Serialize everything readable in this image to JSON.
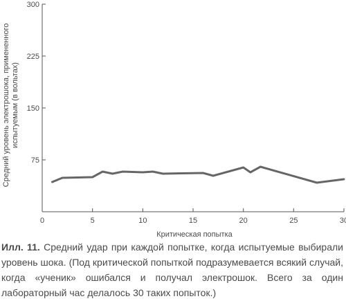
{
  "chart_data": {
    "type": "line",
    "title": "",
    "xlabel": "Критическая попытка",
    "ylabel_lines": [
      "Средний уровень электрошока, примененного",
      "испытуемым (в вольтах)"
    ],
    "xlim": [
      0,
      30
    ],
    "ylim": [
      0,
      300
    ],
    "x_ticks": [
      0,
      5,
      10,
      15,
      20,
      25,
      30
    ],
    "x_tick_labels": [
      "0",
      "5",
      "10",
      "15",
      "20",
      "25",
      "30"
    ],
    "y_ticks": [
      75,
      150,
      225,
      300
    ],
    "y_tick_labels": [
      "75",
      "150",
      "225",
      "300"
    ],
    "grid": false,
    "series": [
      {
        "color": "#666666",
        "x": [
          1,
          2,
          5,
          6,
          7,
          8,
          10,
          11,
          12,
          16,
          17,
          20,
          20.7,
          21.7,
          27.3,
          30
        ],
        "y": [
          43,
          49,
          50,
          58,
          55,
          58,
          57,
          58,
          55,
          56,
          52,
          64,
          57,
          65,
          42,
          47
        ]
      }
    ]
  },
  "caption": {
    "label": "Илл. 11.",
    "text": " Средний удар при каждой попытке, когда испытуемые выбирали уровень шока. (Под критической попыткой подразумевается всякий случай, когда «ученик» ошибался и получал электрошок. Всего за один лабораторный час делалось 30 таких попыток.)"
  }
}
